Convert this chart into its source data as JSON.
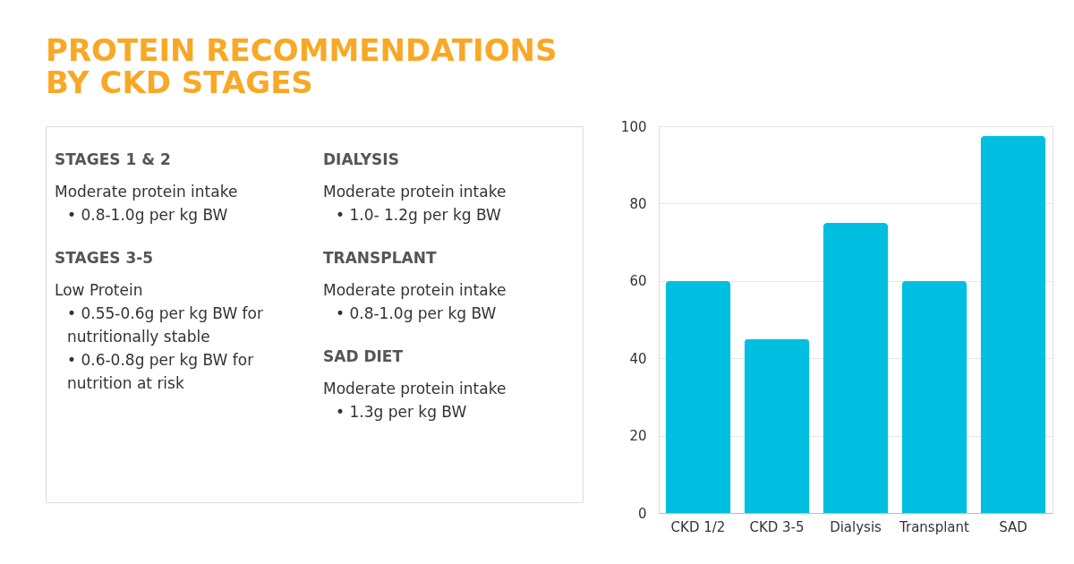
{
  "chart_data": [
    {
      "type": "other",
      "title": "PROTEIN RECOMMENDATIONS BY CKD STAGES",
      "annotations": [
        "STAGES 1 & 2",
        "Moderate protein intake",
        "• 0.8-1.0g per kg BW",
        "STAGES 3-5",
        "Low Protein",
        "• 0.55-0.6g per kg BW for nutritionally stable",
        "• 0.6-0.8g per kg BW for nutrition at risk",
        "DIALYSIS",
        "Moderate protein intake",
        "• 1.0- 1.2g per kg BW",
        "TRANSPLANT",
        "Moderate protein intake",
        "• 0.8-1.0g per kg BW",
        "SAD DIET",
        "Moderate protein intake",
        "• 1.3g per kg BW"
      ]
    },
    {
      "type": "bar",
      "categories": [
        "CKD 1/2",
        "CKD 3-5",
        "Dialysis",
        "Transplant",
        "SAD"
      ],
      "values": [
        60,
        45,
        75,
        60,
        97.5
      ],
      "color": "#00bfe0",
      "ylim": [
        0,
        100
      ],
      "yticks": [
        0,
        20,
        40,
        60,
        80,
        100
      ],
      "grid": "y"
    }
  ]
}
